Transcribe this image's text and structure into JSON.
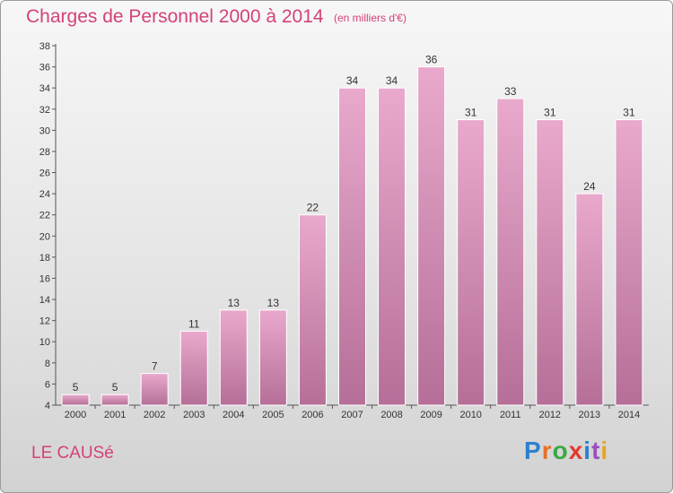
{
  "title": "Charges de Personnel 2000 à 2014",
  "subtitle": "(en milliers d'€)",
  "commune": "LE CAUSé",
  "logo": {
    "text": "Proxiti",
    "colors": [
      "#2e7fd0",
      "#e8702a",
      "#3aa845",
      "#e23a2e",
      "#2e7fd0",
      "#9b4fc0",
      "#e8a520"
    ]
  },
  "colors": {
    "title": "#d4417a",
    "bar_top": "#e9a9cc",
    "bar_bottom": "#b56f98",
    "bar_edge": "#ffffff"
  },
  "chart_data": {
    "type": "bar",
    "categories": [
      "2000",
      "2001",
      "2002",
      "2003",
      "2004",
      "2005",
      "2006",
      "2007",
      "2008",
      "2009",
      "2010",
      "2011",
      "2012",
      "2013",
      "2014"
    ],
    "values": [
      5,
      5,
      7,
      11,
      13,
      13,
      22,
      34,
      34,
      36,
      31,
      33,
      31,
      24,
      31
    ],
    "ylim": [
      4,
      38
    ],
    "yticks": [
      4,
      6,
      8,
      10,
      12,
      14,
      16,
      18,
      20,
      22,
      24,
      26,
      28,
      30,
      32,
      34,
      36,
      38
    ],
    "xlabel": "",
    "ylabel": "",
    "grid": false
  }
}
